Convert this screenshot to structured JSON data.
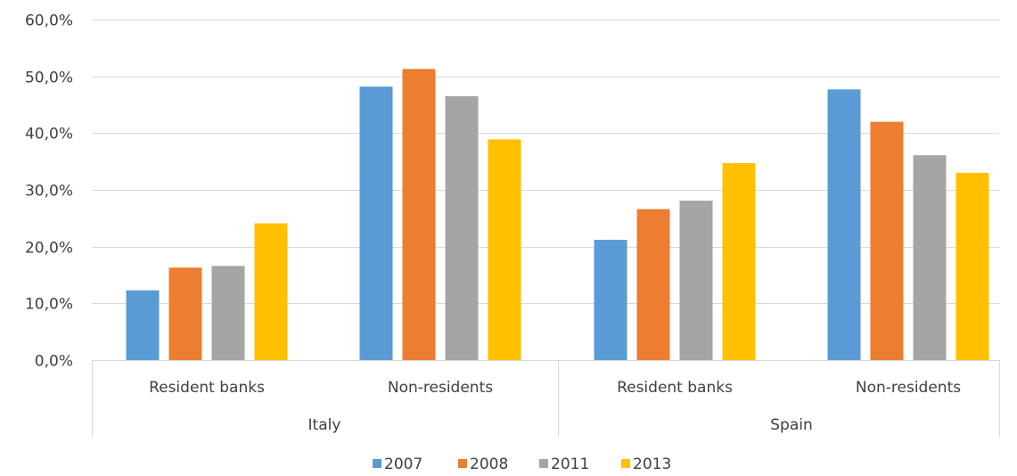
{
  "chart_data": {
    "type": "bar",
    "title": "",
    "xlabel": "",
    "ylabel": "",
    "ylim": [
      0,
      60
    ],
    "yticks": [
      0,
      10,
      20,
      30,
      40,
      50,
      60
    ],
    "ytick_labels": [
      "0,0%",
      "10,0%",
      "20,0%",
      "30,0%",
      "40,0%",
      "50,0%",
      "60,0%"
    ],
    "grid": true,
    "legend_position": "bottom",
    "groups": [
      {
        "label": "Italy",
        "categories": [
          "Resident banks",
          "Non-residents"
        ]
      },
      {
        "label": "Spain",
        "categories": [
          "Resident banks",
          "Non-residents"
        ]
      }
    ],
    "categories": [
      "Resident banks",
      "Non-residents",
      "Resident banks",
      "Non-residents"
    ],
    "series": [
      {
        "name": "2007",
        "color": "#5B9BD5",
        "values": [
          12.3,
          48.2,
          21.2,
          47.7
        ]
      },
      {
        "name": "2008",
        "color": "#ED7D31",
        "values": [
          16.3,
          51.3,
          26.6,
          42.0
        ]
      },
      {
        "name": "2011",
        "color": "#A5A5A5",
        "values": [
          16.6,
          46.5,
          28.1,
          36.1
        ]
      },
      {
        "name": "2013",
        "color": "#FFC000",
        "values": [
          24.1,
          38.9,
          34.7,
          33.0
        ]
      }
    ]
  }
}
